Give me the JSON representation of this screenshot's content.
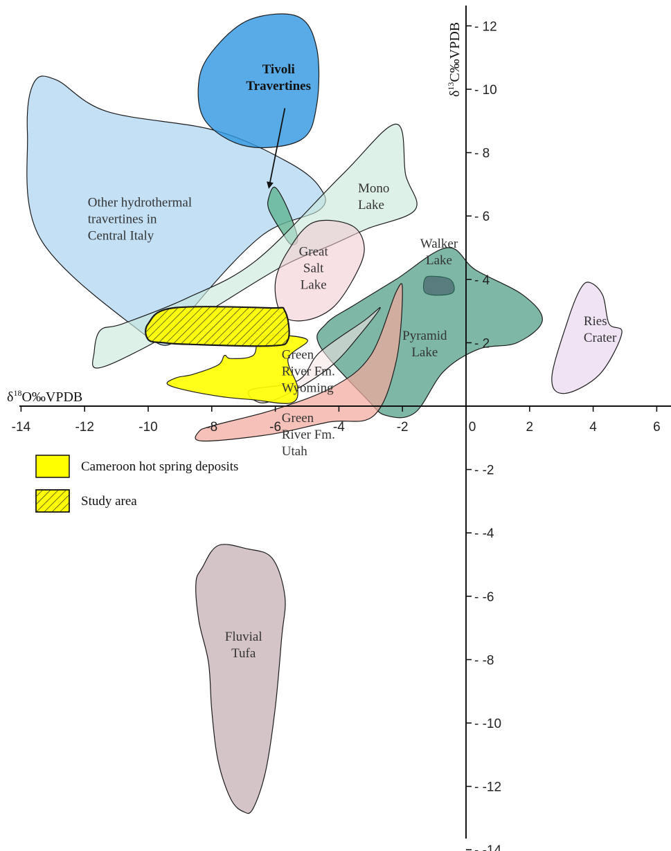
{
  "chart_data": {
    "type": "scatter",
    "title": "",
    "xlabel": {
      "prefix": "δ",
      "sup": "18",
      "main": "O‰VPDB"
    },
    "ylabel": {
      "prefix": "δ",
      "sup": "13",
      "main": "C‰VPDB"
    },
    "xlim": [
      -14,
      6.5
    ],
    "ylim": [
      -14,
      12.5
    ],
    "x_ticks": [
      -14,
      -12,
      -10,
      -8,
      -6,
      -4,
      -2,
      0,
      2,
      4,
      6
    ],
    "y_ticks": [
      -14,
      -12,
      -10,
      -8,
      -6,
      -4,
      -2,
      2,
      4,
      6,
      8,
      10,
      12
    ],
    "grid": false,
    "legend_position": "left",
    "legend": [
      {
        "label": "Cameroon hot spring deposits",
        "fill": "#ffff00",
        "hatch": false
      },
      {
        "label": "Study area",
        "fill": "#ffff00",
        "hatch": true
      }
    ],
    "regions": [
      {
        "id": "other-hydrothermal",
        "lines": [
          "Other hydrothermal",
          "travertines in",
          "Central Italy"
        ],
        "label_at": [
          -11.9,
          6.3
        ],
        "anchor": "start",
        "fill": "#a9d3f1",
        "opacity": 0.7,
        "stroke": "#1a1a1a",
        "points": [
          [
            -13.6,
            10.2
          ],
          [
            -12.9,
            10.3
          ],
          [
            -11.3,
            9.3
          ],
          [
            -7.9,
            8.7
          ],
          [
            -5.6,
            7.7
          ],
          [
            -4.6,
            6.9
          ],
          [
            -4.6,
            6.2
          ],
          [
            -6.4,
            5.4
          ],
          [
            -8.5,
            3.2
          ],
          [
            -9.2,
            2.0
          ],
          [
            -10.3,
            2.4
          ],
          [
            -13.4,
            5.3
          ],
          [
            -13.8,
            8.6
          ]
        ]
      },
      {
        "id": "tivoli",
        "lines": [
          "Tivoli",
          "Travertines"
        ],
        "label_at": [
          -5.9,
          10.5
        ],
        "anchor": "middle",
        "bold": true,
        "fill": "#3399e0",
        "opacity": 0.82,
        "stroke": "#1a1a1a",
        "points": [
          [
            -7.9,
            11.3
          ],
          [
            -6.8,
            12.2
          ],
          [
            -5.3,
            12.3
          ],
          [
            -4.7,
            11.3
          ],
          [
            -4.7,
            9.5
          ],
          [
            -5.2,
            8.4
          ],
          [
            -6.9,
            8.2
          ],
          [
            -8.2,
            9.0
          ],
          [
            -8.4,
            10.3
          ]
        ]
      },
      {
        "id": "tivoli-samples",
        "lines": [],
        "fill": "#5fb392",
        "opacity": 0.8,
        "stroke": "#1a1a1a",
        "points": [
          [
            -6.2,
            6.6
          ],
          [
            -6.0,
            6.9
          ],
          [
            -5.6,
            6.2
          ],
          [
            -5.3,
            5.3
          ],
          [
            -5.5,
            5.1
          ],
          [
            -5.8,
            5.5
          ],
          [
            -6.2,
            6.2
          ]
        ]
      },
      {
        "id": "mono-lake",
        "lines": [
          "Mono",
          "Lake"
        ],
        "label_at": [
          -3.4,
          6.75
        ],
        "anchor": "start",
        "fill": "#c9e8dc",
        "opacity": 0.62,
        "stroke": "#1a1a1a",
        "points": [
          [
            -11.5,
            2.4
          ],
          [
            -10.8,
            2.6
          ],
          [
            -8.8,
            3.4
          ],
          [
            -6.6,
            4.6
          ],
          [
            -3.9,
            7.3
          ],
          [
            -2.2,
            8.9
          ],
          [
            -1.9,
            7.3
          ],
          [
            -1.6,
            6.2
          ],
          [
            -3.1,
            5.6
          ],
          [
            -4.2,
            5.1
          ],
          [
            -5.8,
            4.4
          ],
          [
            -8.1,
            3.0
          ],
          [
            -10.2,
            1.8
          ],
          [
            -11.6,
            1.2
          ],
          [
            -11.7,
            1.7
          ]
        ]
      },
      {
        "id": "great-salt-lake",
        "lines": [
          "Great",
          "Salt",
          "Lake"
        ],
        "label_at": [
          -4.8,
          4.75
        ],
        "anchor": "middle",
        "fill": "#f2c8d0",
        "opacity": 0.55,
        "stroke": "#1a1a1a",
        "points": [
          [
            -6.0,
            3.9
          ],
          [
            -5.6,
            4.9
          ],
          [
            -4.8,
            5.8
          ],
          [
            -3.6,
            5.7
          ],
          [
            -3.2,
            5.0
          ],
          [
            -3.5,
            4.1
          ],
          [
            -4.2,
            3.1
          ],
          [
            -5.1,
            2.7
          ],
          [
            -5.8,
            2.9
          ]
        ]
      },
      {
        "id": "walker-lake",
        "lines": [
          "Walker",
          "Lake"
        ],
        "label_at": [
          -0.85,
          5.0
        ],
        "anchor": "middle",
        "fill": "#9a5e95",
        "opacity": 0.95,
        "stroke": "#1a1a1a",
        "points": [
          [
            -1.3,
            4.0
          ],
          [
            -1.1,
            4.1
          ],
          [
            -0.5,
            4.0
          ],
          [
            -0.4,
            3.6
          ],
          [
            -0.9,
            3.5
          ],
          [
            -1.3,
            3.6
          ]
        ]
      },
      {
        "id": "pyramid-lake",
        "lines": [
          "Pyramid",
          "Lake"
        ],
        "label_at": [
          -1.3,
          2.1
        ],
        "anchor": "middle",
        "fill": "#2e8a70",
        "opacity": 0.62,
        "stroke": "#1a1a1a",
        "points": [
          [
            -3.5,
            3.2
          ],
          [
            -2.2,
            4.0
          ],
          [
            -0.6,
            5.0
          ],
          [
            0.3,
            4.3
          ],
          [
            1.8,
            3.5
          ],
          [
            2.4,
            2.7
          ],
          [
            1.6,
            2.0
          ],
          [
            0.4,
            1.8
          ],
          [
            -0.7,
            1.1
          ],
          [
            -1.6,
            -0.2
          ],
          [
            -2.5,
            -0.3
          ],
          [
            -3.1,
            0.2
          ],
          [
            -4.6,
            1.9
          ],
          [
            -4.4,
            2.6
          ]
        ]
      },
      {
        "id": "green-river-wyoming",
        "lines": [
          "Green",
          "River Fm.",
          "Wyoming"
        ],
        "label_at": [
          -5.8,
          1.5
        ],
        "anchor": "start",
        "fill": "#f8e6e6",
        "opacity": 0.55,
        "stroke": "#1a1a1a",
        "points": [
          [
            -5.3,
            0.8
          ],
          [
            -4.6,
            1.7
          ],
          [
            -3.2,
            2.7
          ],
          [
            -2.7,
            3.1
          ],
          [
            -3.3,
            2.3
          ],
          [
            -4.2,
            1.3
          ],
          [
            -5.4,
            0.5
          ],
          [
            -6.4,
            0.1
          ],
          [
            -6.8,
            0.5
          ]
        ]
      },
      {
        "id": "green-river-utah",
        "lines": [
          "Green",
          "River Fm.",
          "Utah"
        ],
        "label_at": [
          -5.8,
          -0.5
        ],
        "anchor": "start",
        "fill": "#f1a99e",
        "opacity": 0.72,
        "stroke": "#1a1a1a",
        "points": [
          [
            -8.4,
            -0.8
          ],
          [
            -7.9,
            -0.6
          ],
          [
            -6.0,
            -0.1
          ],
          [
            -4.2,
            0.6
          ],
          [
            -3.0,
            1.6
          ],
          [
            -2.2,
            3.6
          ],
          [
            -2.0,
            3.6
          ],
          [
            -2.2,
            1.4
          ],
          [
            -2.9,
            -0.3
          ],
          [
            -4.3,
            -0.5
          ],
          [
            -6.2,
            -0.9
          ],
          [
            -8.3,
            -1.1
          ]
        ]
      },
      {
        "id": "ries-crater",
        "lines": [
          "Ries",
          "Crater"
        ],
        "label_at": [
          3.7,
          2.55
        ],
        "anchor": "start",
        "fill": "#eadaf0",
        "opacity": 0.75,
        "stroke": "#1a1a1a",
        "points": [
          [
            3.2,
            2.7
          ],
          [
            3.6,
            3.7
          ],
          [
            3.9,
            3.9
          ],
          [
            4.3,
            3.5
          ],
          [
            4.5,
            2.6
          ],
          [
            4.9,
            2.3
          ],
          [
            4.2,
            1.0
          ],
          [
            3.1,
            0.4
          ],
          [
            2.7,
            0.9
          ]
        ]
      },
      {
        "id": "cameroon",
        "lines": [],
        "fill": "#ffff00",
        "opacity": 0.9,
        "stroke": "#1a1a1a",
        "points": [
          [
            -7.4,
            1.5
          ],
          [
            -7.6,
            1.6
          ],
          [
            -7.8,
            1.3
          ],
          [
            -8.6,
            1.0
          ],
          [
            -9.1,
            0.9
          ],
          [
            -9.4,
            0.7
          ],
          [
            -8.8,
            0.5
          ],
          [
            -7.7,
            0.3
          ],
          [
            -6.7,
            0.2
          ],
          [
            -5.5,
            0.1
          ],
          [
            -5.3,
            0.6
          ],
          [
            -5.6,
            1.5
          ],
          [
            -5.0,
            2.1
          ],
          [
            -6.4,
            2.2
          ],
          [
            -6.7,
            1.6
          ]
        ]
      },
      {
        "id": "study-area",
        "lines": [],
        "fill": "#ffff00",
        "opacity": 0.95,
        "stroke": "#1a1a1a",
        "hatch": true,
        "thick": true,
        "points": [
          [
            -9.2,
            3.1
          ],
          [
            -6.2,
            3.1
          ],
          [
            -5.7,
            3.0
          ],
          [
            -5.6,
            2.1
          ],
          [
            -6.2,
            1.9
          ],
          [
            -8.7,
            1.95
          ],
          [
            -9.5,
            2.0
          ],
          [
            -10.0,
            2.1
          ],
          [
            -10.0,
            2.6
          ]
        ]
      },
      {
        "id": "fluvial-tufa",
        "lines": [
          "Fluvial",
          "Tufa"
        ],
        "label_at": [
          -7.0,
          -7.4
        ],
        "anchor": "middle",
        "fill": "#cebcc0",
        "opacity": 0.88,
        "stroke": "#1a1a1a",
        "points": [
          [
            -7.8,
            -4.4
          ],
          [
            -6.9,
            -4.5
          ],
          [
            -6.1,
            -4.8
          ],
          [
            -5.7,
            -6.0
          ],
          [
            -5.8,
            -7.3
          ],
          [
            -6.0,
            -9.5
          ],
          [
            -6.3,
            -11.5
          ],
          [
            -6.7,
            -12.7
          ],
          [
            -7.0,
            -12.8
          ],
          [
            -7.4,
            -12.4
          ],
          [
            -7.8,
            -11.2
          ],
          [
            -8.0,
            -9.6
          ],
          [
            -8.1,
            -8.1
          ],
          [
            -8.4,
            -6.8
          ],
          [
            -8.5,
            -5.6
          ],
          [
            -8.3,
            -5.1
          ]
        ]
      }
    ],
    "arrow": {
      "from": [
        -5.7,
        9.4
      ],
      "to": [
        -6.2,
        6.9
      ]
    }
  }
}
